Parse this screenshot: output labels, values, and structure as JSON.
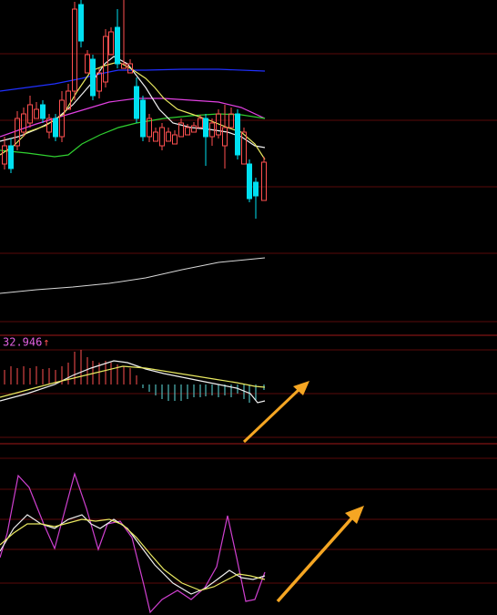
{
  "indicator": {
    "value": "32.946",
    "arrow": "↑"
  }
}
